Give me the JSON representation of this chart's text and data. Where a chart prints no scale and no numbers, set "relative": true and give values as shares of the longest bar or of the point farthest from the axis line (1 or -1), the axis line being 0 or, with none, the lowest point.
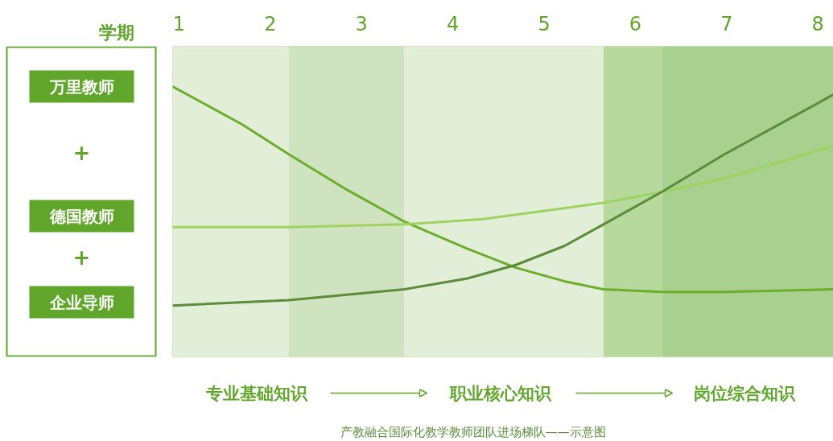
{
  "chart_data": {
    "type": "line",
    "relative": true,
    "title": "产教融合国际化教学教师团队进场梯队——示意图",
    "xlabel": "学期",
    "xlim": [
      0.93,
      8.17
    ],
    "xticks": [
      1,
      2,
      3,
      4,
      5,
      6,
      7,
      8
    ],
    "grid": false,
    "tick_labels": "x",
    "marker": "none",
    "line_style": "solid",
    "bands": [
      {
        "axis": "x",
        "from": 0.93,
        "to": 2.2,
        "color": "#e3eed8"
      },
      {
        "axis": "x",
        "from": 2.2,
        "to": 3.47,
        "color": "#d0e3c0"
      },
      {
        "axis": "x",
        "from": 3.47,
        "to": 5.65,
        "color": "#e3eed8"
      },
      {
        "axis": "x",
        "from": 5.65,
        "to": 6.29,
        "color": "#b8d99e"
      },
      {
        "axis": "x",
        "from": 6.29,
        "to": 8.17,
        "color": "#a9d08e"
      }
    ],
    "annotations": [
      "万里教师",
      "+",
      "德国教师",
      "+",
      "企业导师",
      "专业基础知识",
      "职业核心知识",
      "岗位综合知识"
    ],
    "series": [
      {
        "color": "#6aae2c",
        "x": [
          0.93,
          1.69,
          2.2,
          2.83,
          3.47,
          4.16,
          4.69,
          5.22,
          5.65,
          6.29,
          6.98,
          8.17
        ],
        "values": [
          1.0,
          0.86,
          0.75,
          0.62,
          0.5,
          0.4,
          0.33,
          0.28,
          0.25,
          0.24,
          0.24,
          0.25
        ]
      },
      {
        "color": "#9dd35f",
        "x": [
          0.93,
          2.2,
          3.47,
          4.33,
          5.22,
          5.65,
          6.29,
          6.98,
          8.17
        ],
        "values": [
          0.48,
          0.48,
          0.49,
          0.51,
          0.55,
          0.57,
          0.61,
          0.66,
          0.78
        ]
      },
      {
        "color": "#5b8c3a",
        "x": [
          0.93,
          2.2,
          3.47,
          4.16,
          4.69,
          5.22,
          5.65,
          6.29,
          6.98,
          8.17
        ],
        "values": [
          0.19,
          0.21,
          0.25,
          0.29,
          0.34,
          0.41,
          0.49,
          0.61,
          0.75,
          0.97
        ]
      }
    ]
  }
}
